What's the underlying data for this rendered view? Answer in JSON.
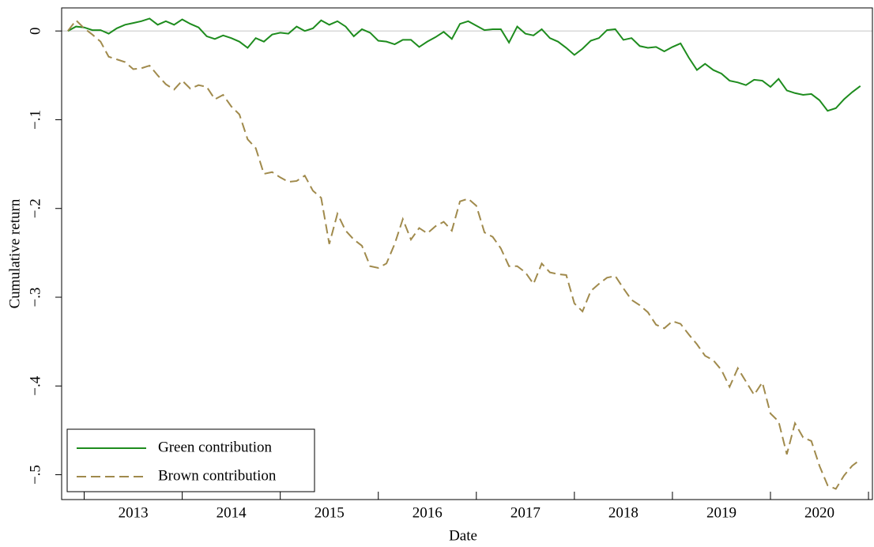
{
  "chart_data": {
    "type": "line",
    "xlabel": "Date",
    "ylabel": "Cumulative return",
    "x": [
      2012.833,
      2012.917,
      2013.0,
      2013.083,
      2013.167,
      2013.25,
      2013.333,
      2013.417,
      2013.5,
      2013.583,
      2013.667,
      2013.75,
      2013.833,
      2013.917,
      2014.0,
      2014.083,
      2014.167,
      2014.25,
      2014.333,
      2014.417,
      2014.5,
      2014.583,
      2014.667,
      2014.75,
      2014.833,
      2014.917,
      2015.0,
      2015.083,
      2015.167,
      2015.25,
      2015.333,
      2015.417,
      2015.5,
      2015.583,
      2015.667,
      2015.75,
      2015.833,
      2015.917,
      2016.0,
      2016.083,
      2016.167,
      2016.25,
      2016.333,
      2016.417,
      2016.5,
      2016.583,
      2016.667,
      2016.75,
      2016.833,
      2016.917,
      2017.0,
      2017.083,
      2017.167,
      2017.25,
      2017.333,
      2017.417,
      2017.5,
      2017.583,
      2017.667,
      2017.75,
      2017.833,
      2017.917,
      2018.0,
      2018.083,
      2018.167,
      2018.25,
      2018.333,
      2018.417,
      2018.5,
      2018.583,
      2018.667,
      2018.75,
      2018.833,
      2018.917,
      2019.0,
      2019.083,
      2019.167,
      2019.25,
      2019.333,
      2019.417,
      2019.5,
      2019.583,
      2019.667,
      2019.75,
      2019.833,
      2019.917,
      2020.0,
      2020.083,
      2020.167,
      2020.25,
      2020.333,
      2020.417,
      2020.5,
      2020.583,
      2020.667,
      2020.75,
      2020.833,
      2020.917
    ],
    "series": [
      {
        "name": "Green contribution",
        "color": "#1e8c1e",
        "dash": false,
        "values": [
          0,
          0.005,
          0.004,
          0.001,
          0.001,
          -0.003,
          0.003,
          0.007,
          0.009,
          0.011,
          0.014,
          0.007,
          0.011,
          0.007,
          0.013,
          0.008,
          0.004,
          -0.006,
          -0.009,
          -0.005,
          -0.008,
          -0.012,
          -0.019,
          -0.008,
          -0.012,
          -0.004,
          -0.002,
          -0.003,
          0.005,
          0,
          0.003,
          0.012,
          0.007,
          0.011,
          0.005,
          -0.006,
          0.002,
          -0.002,
          -0.011,
          -0.012,
          -0.015,
          -0.01,
          -0.01,
          -0.018,
          -0.012,
          -0.007,
          -0.001,
          -0.009,
          0.008,
          0.011,
          0.006,
          0.001,
          0.002,
          0.002,
          -0.013,
          0.005,
          -0.003,
          -0.005,
          0.002,
          -0.008,
          -0.012,
          -0.019,
          -0.027,
          -0.02,
          -0.011,
          -0.008,
          0.001,
          0.002,
          -0.01,
          -0.008,
          -0.017,
          -0.019,
          -0.018,
          -0.023,
          -0.018,
          -0.014,
          -0.03,
          -0.044,
          -0.037,
          -0.044,
          -0.048,
          -0.056,
          -0.058,
          -0.061,
          -0.055,
          -0.056,
          -0.063,
          -0.054,
          -0.067,
          -0.07,
          -0.072,
          -0.071,
          -0.078,
          -0.09,
          -0.087,
          -0.077,
          -0.069,
          -0.062
        ]
      },
      {
        "name": "Brown contribution",
        "color": "#a08a4c",
        "dash": true,
        "values": [
          0,
          0.012,
          0.003,
          -0.004,
          -0.012,
          -0.029,
          -0.032,
          -0.035,
          -0.043,
          -0.042,
          -0.039,
          -0.05,
          -0.06,
          -0.066,
          -0.056,
          -0.065,
          -0.061,
          -0.063,
          -0.077,
          -0.072,
          -0.085,
          -0.094,
          -0.122,
          -0.132,
          -0.161,
          -0.159,
          -0.165,
          -0.17,
          -0.169,
          -0.163,
          -0.18,
          -0.188,
          -0.24,
          -0.206,
          -0.225,
          -0.235,
          -0.242,
          -0.265,
          -0.267,
          -0.262,
          -0.24,
          -0.212,
          -0.235,
          -0.222,
          -0.228,
          -0.22,
          -0.215,
          -0.225,
          -0.192,
          -0.189,
          -0.197,
          -0.227,
          -0.232,
          -0.245,
          -0.265,
          -0.265,
          -0.272,
          -0.285,
          -0.262,
          -0.272,
          -0.274,
          -0.275,
          -0.307,
          -0.316,
          -0.293,
          -0.285,
          -0.278,
          -0.276,
          -0.29,
          -0.303,
          -0.309,
          -0.317,
          -0.331,
          -0.335,
          -0.327,
          -0.33,
          -0.342,
          -0.353,
          -0.366,
          -0.371,
          -0.382,
          -0.401,
          -0.38,
          -0.395,
          -0.41,
          -0.396,
          -0.431,
          -0.44,
          -0.477,
          -0.442,
          -0.458,
          -0.462,
          -0.49,
          -0.512,
          -0.516,
          -0.501,
          -0.49,
          -0.483
        ]
      }
    ],
    "xlim": [
      2012.77,
      2021.04
    ],
    "xticks": [
      2013,
      2014,
      2015,
      2016,
      2017,
      2018,
      2019,
      2020,
      2021
    ],
    "year_labels": [
      2013,
      2014,
      2015,
      2016,
      2017,
      2018,
      2019,
      2020
    ],
    "ylim": [
      -0.528,
      0.026
    ],
    "yticks": [
      0,
      {
        "value": -0.1,
        "label": "−.1"
      },
      {
        "value": -0.2,
        "label": "−.2"
      },
      {
        "value": -0.3,
        "label": "−.3"
      },
      {
        "value": -0.4,
        "label": "−.4"
      },
      {
        "value": -0.5,
        "label": "−.5"
      }
    ],
    "reference_line": 0,
    "legend": "lower left"
  }
}
